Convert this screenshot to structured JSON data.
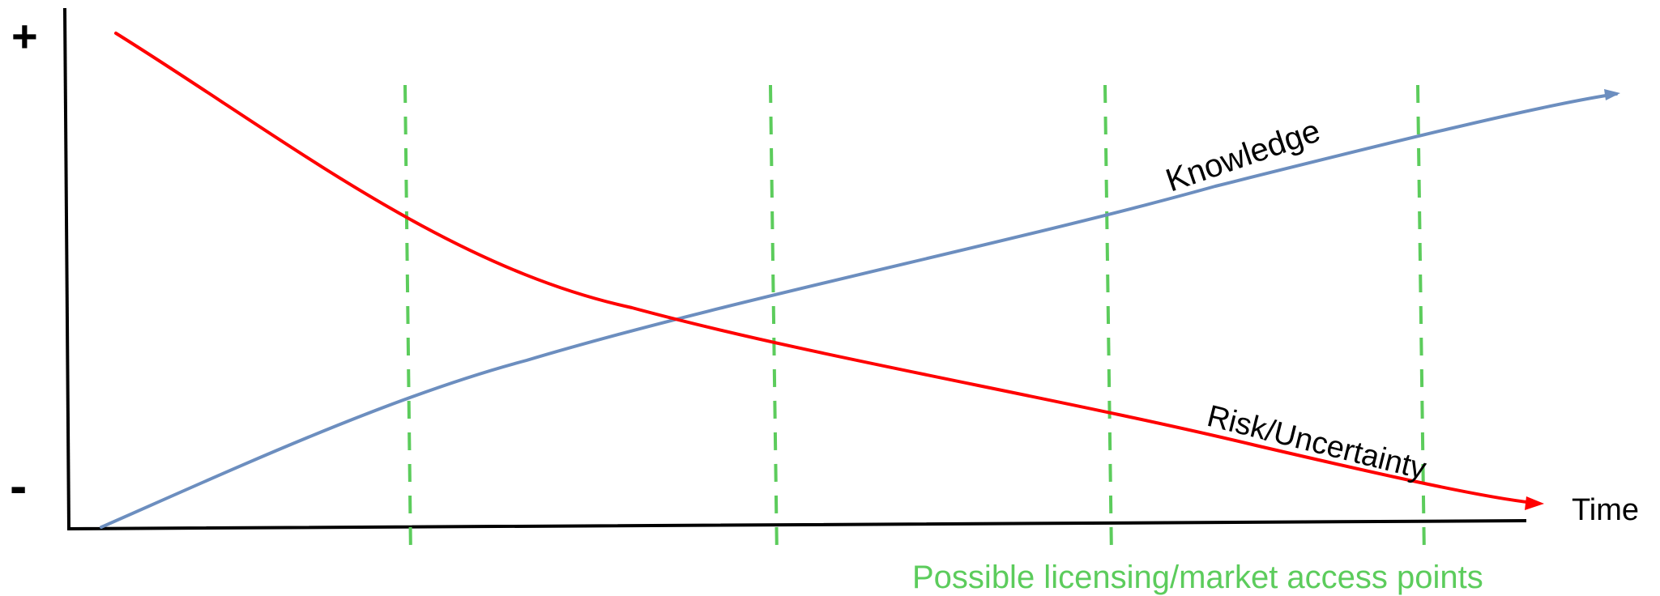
{
  "axes": {
    "y_top_symbol": "+",
    "y_bottom_symbol": "-",
    "x_label": "Time"
  },
  "curves": {
    "knowledge": {
      "label": "Knowledge",
      "color": "#6c8ebf",
      "trend": "increasing"
    },
    "risk": {
      "label": "Risk/Uncertainty",
      "color": "#ff0000",
      "trend": "decreasing"
    }
  },
  "access_points": {
    "label": "Possible licensing/market access points",
    "color": "#5ccc5c",
    "count": 4
  },
  "colors": {
    "axis": "#000000",
    "knowledge": "#6c8ebf",
    "risk": "#ff0000",
    "marker": "#5ccc5c"
  }
}
